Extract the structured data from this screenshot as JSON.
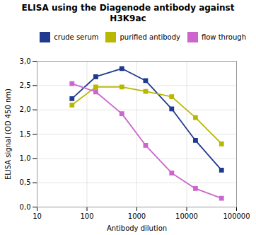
{
  "chart_data": {
    "type": "line",
    "title": "ELISA using the Diagenode antibody against H3K9ac",
    "xlabel": "Antibody dilution",
    "ylabel": "ELISA signal (OD 450 nm)",
    "x": [
      50,
      150,
      500,
      1500,
      5000,
      15000,
      50000
    ],
    "series": [
      {
        "name": "crude serum",
        "color": "#1f3a8f",
        "marker": "square",
        "values": [
          2.23,
          2.68,
          2.85,
          2.6,
          2.02,
          1.37,
          0.76
        ]
      },
      {
        "name": "purified antibody",
        "color": "#b8b800",
        "marker": "square",
        "values": [
          2.1,
          2.47,
          2.47,
          2.38,
          2.27,
          1.84,
          1.3
        ]
      },
      {
        "name": "flow through",
        "color": "#cc66cc",
        "marker": "square",
        "values": [
          2.54,
          2.37,
          1.92,
          1.27,
          0.7,
          0.38,
          0.18
        ]
      }
    ],
    "xlim": [
      10,
      100000
    ],
    "xticks": [
      10,
      100,
      1000,
      10000,
      100000
    ],
    "ylim": [
      0.0,
      3.0
    ],
    "yticks": [
      {
        "value": 0.0,
        "label": "0,0"
      },
      {
        "value": 0.5,
        "label": "0,5"
      },
      {
        "value": 1.0,
        "label": "1,0"
      },
      {
        "value": 1.5,
        "label": "1,5"
      },
      {
        "value": 2.0,
        "label": "2,0"
      },
      {
        "value": 2.5,
        "label": "2,5"
      },
      {
        "value": 3.0,
        "label": "3,0"
      }
    ],
    "log": "x",
    "grid": true,
    "legend": "upper right"
  }
}
